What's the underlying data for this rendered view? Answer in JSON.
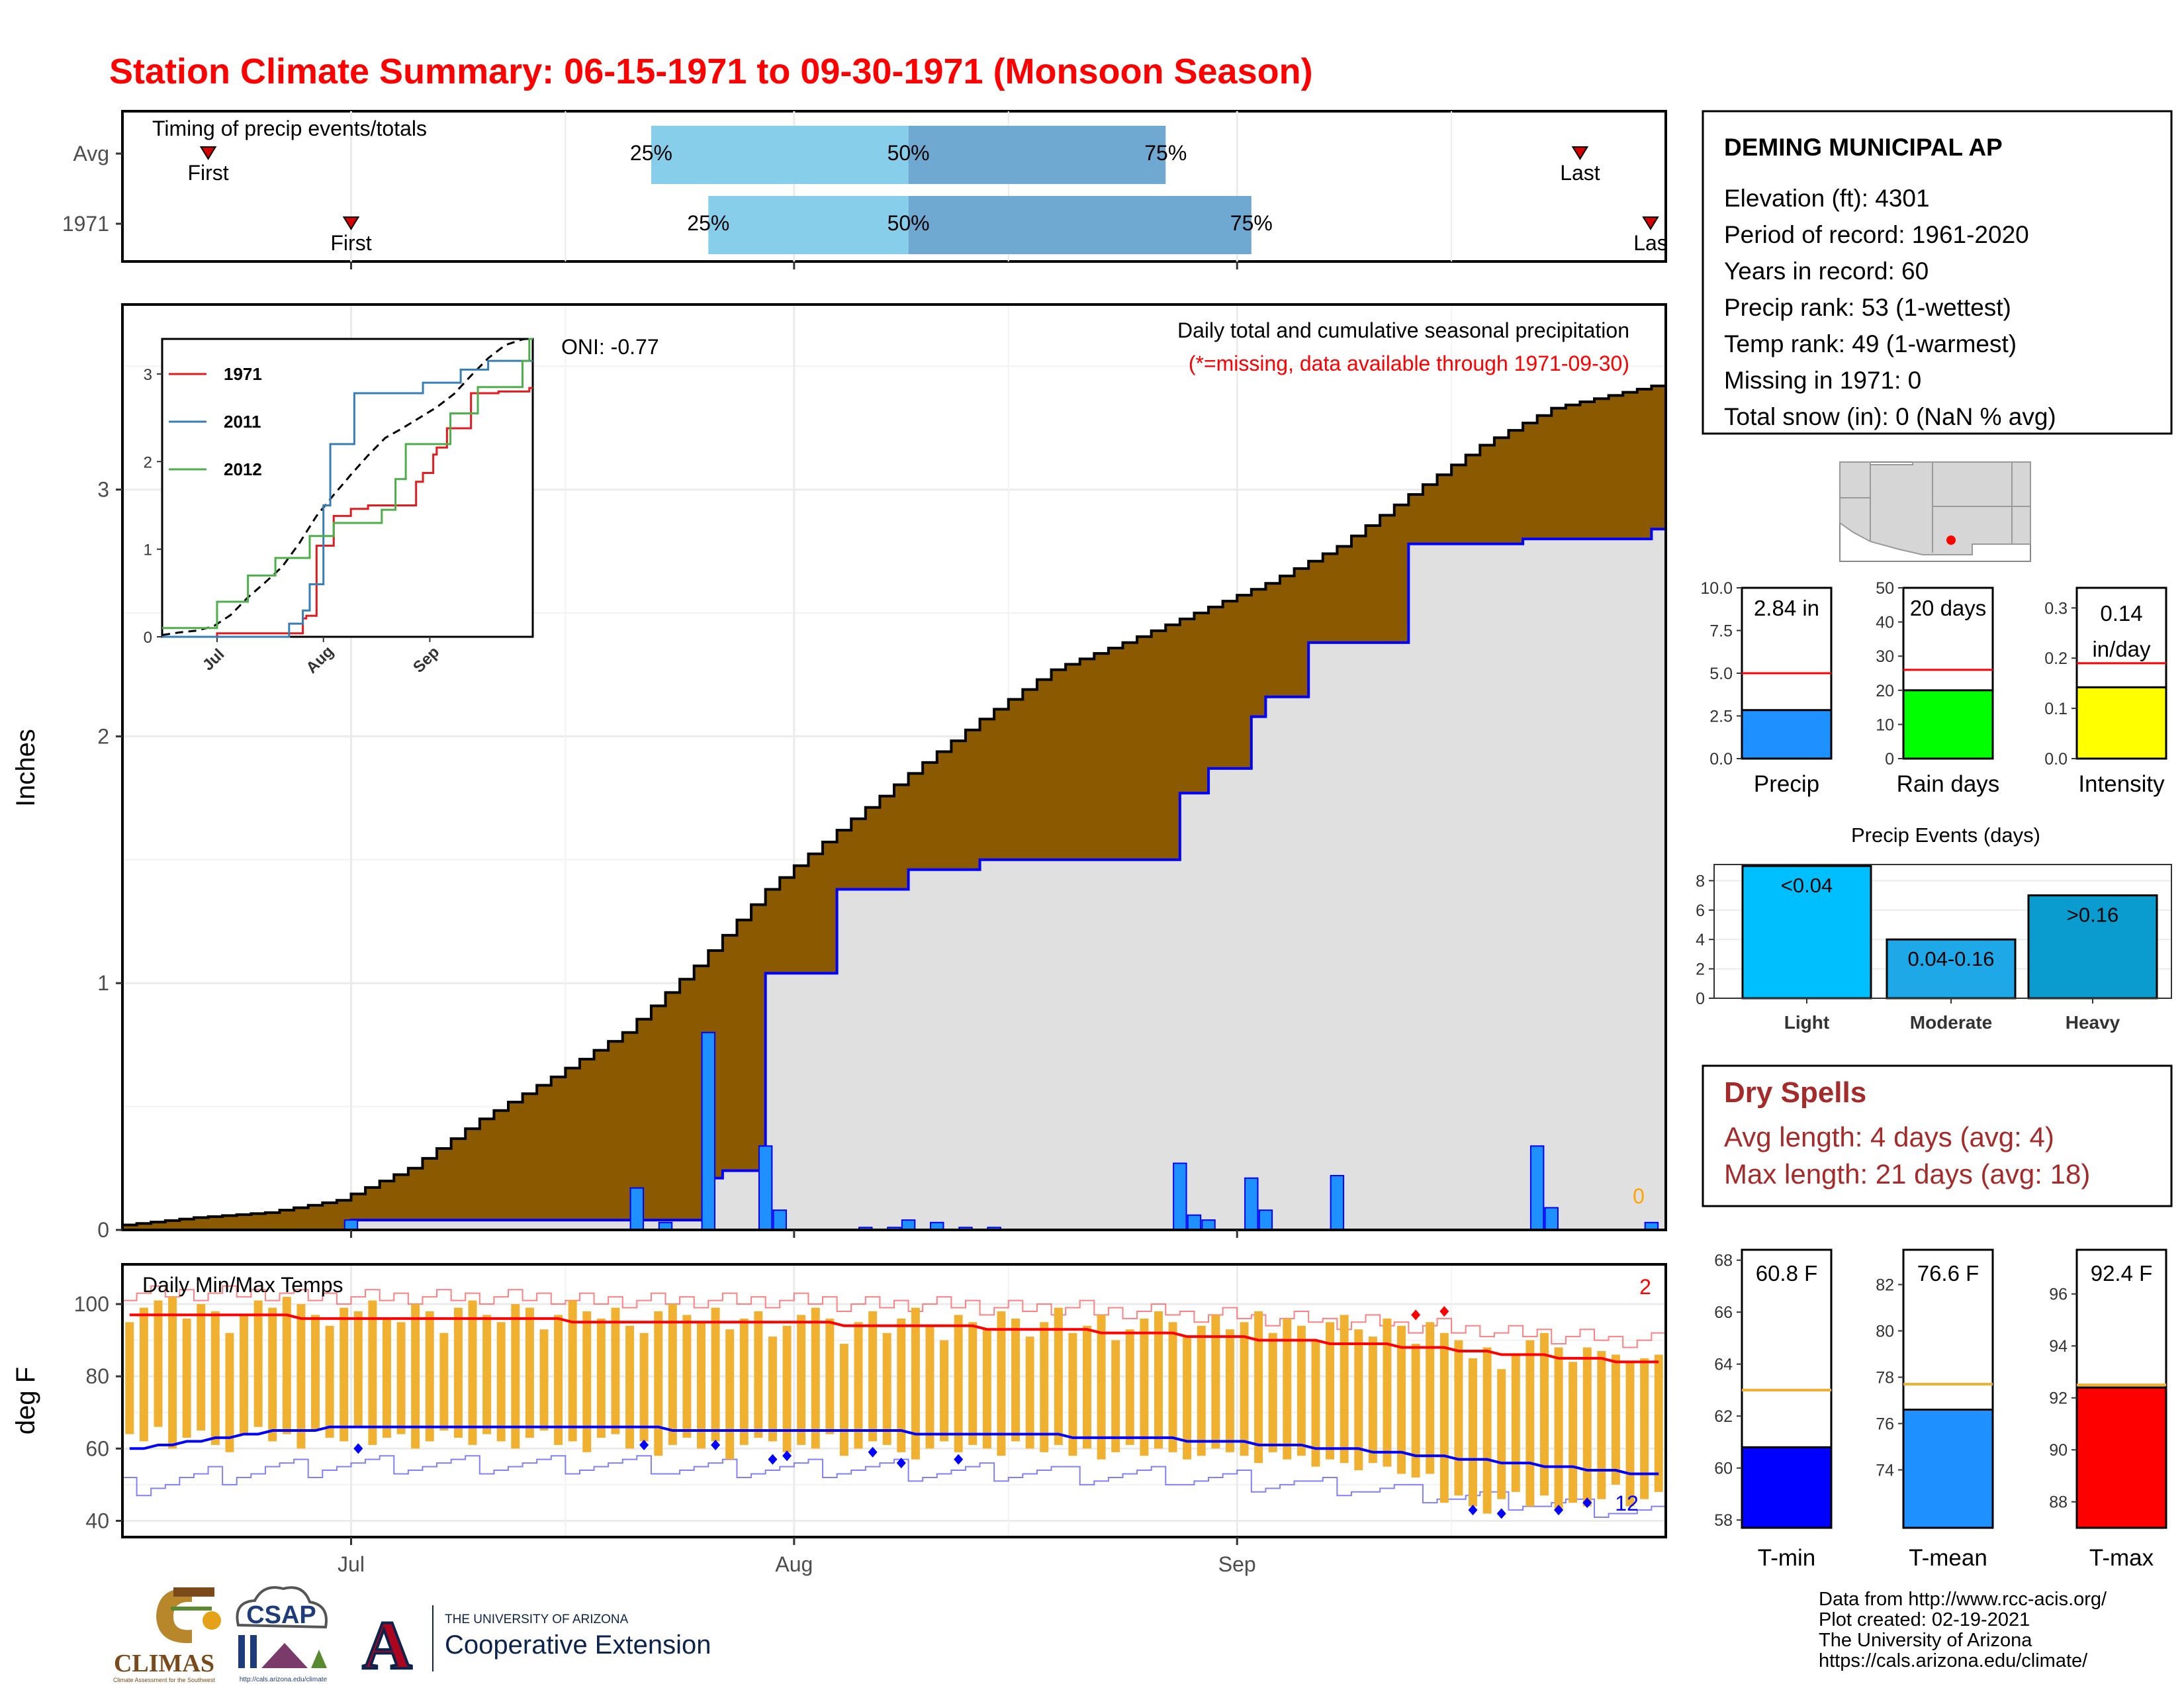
{
  "page": {
    "title": "Station Climate Summary: 06-15-1971 to 09-30-1971 (Monsoon Season)",
    "colors": {
      "title": "#ff0000",
      "brown": "#8b5a00",
      "grey": "#e0e0e0",
      "bar_blue": "#1e90ff",
      "light_blue": "#87ceeb",
      "mid_blue": "#6fa8d0",
      "orange": "#f0b030",
      "dry_red": "#a52a2a"
    }
  },
  "timing": {
    "title": "Timing of precip events/totals",
    "rows": [
      {
        "label": "Avg",
        "first_date": "1971-06-21",
        "p25_date": "1971-07-22",
        "p50_date": "1971-08-09",
        "p75_date": "1971-08-27",
        "last_date": "1971-09-25",
        "first_text": "First",
        "last_text": "Last"
      },
      {
        "label": "1971",
        "first_date": "1971-07-01",
        "p25_date": "1971-07-26",
        "p50_date": "1971-08-09",
        "p75_date": "1971-09-02",
        "last_date": "1971-09-30",
        "first_text": "First",
        "last_text": "Las"
      }
    ],
    "pct_labels": [
      "25%",
      "50%",
      "75%"
    ]
  },
  "precip_chart": {
    "ylabel": "Inches",
    "ylim": [
      0,
      3.75
    ],
    "yticks": [
      "0",
      "1",
      "2",
      "3"
    ],
    "oni_text": "ONI: -0.77",
    "subtitle": "Daily total and cumulative seasonal precipitation",
    "missing_note": "(*=missing, data available through 1971-09-30)",
    "missing_count": "0",
    "x_months": [
      "Jul",
      "Aug",
      "Sep"
    ]
  },
  "inset": {
    "yticks": [
      "0",
      "1",
      "2",
      "3"
    ],
    "x_months": [
      "Jul",
      "Aug",
      "Sep"
    ],
    "legend": [
      {
        "name": "1971",
        "color": "#e41a1c"
      },
      {
        "name": "2011",
        "color": "#377eb8"
      },
      {
        "name": "2012",
        "color": "#4daf4a"
      }
    ]
  },
  "temp_chart": {
    "ylabel": "deg F",
    "title": "Daily Min/Max Temps",
    "yticks": [
      "40",
      "60",
      "80",
      "100"
    ],
    "record_high_count": "2",
    "record_low_count": "12",
    "x_months": [
      "Jul",
      "Aug",
      "Sep"
    ]
  },
  "station": {
    "name": "DEMING MUNICIPAL AP",
    "lines": [
      "Elevation (ft): 4301",
      "Period of record: 1961-2020",
      "Years in record: 60",
      "Precip rank: 53 (1-wettest)",
      "Temp rank: 49 (1-warmest)",
      "Missing in 1971: 0",
      "Total snow (in): 0 (NaN % avg)"
    ]
  },
  "mini_bars": [
    {
      "label": "Precip",
      "value_text": "2.84 in",
      "value": 2.84,
      "avg": 5.0,
      "ymax": 10,
      "color": "#1e90ff",
      "ticks": [
        "0.0",
        "2.5",
        "5.0",
        "7.5",
        "10.0"
      ]
    },
    {
      "label": "Rain days",
      "value_text": "20 days",
      "value": 20,
      "avg": 26,
      "ymax": 50,
      "color": "#00ff00",
      "ticks": [
        "0",
        "10",
        "20",
        "30",
        "40",
        "50"
      ]
    },
    {
      "label": "Intensity",
      "value_text": "0.14",
      "value_text2": "in/day",
      "value": 0.142,
      "avg": 0.19,
      "ymax": 0.34,
      "color": "#ffff00",
      "ticks": [
        "0.0",
        "0.1",
        "0.2",
        "0.3"
      ]
    }
  ],
  "events": {
    "title": "Precip Events (days)",
    "ticks": [
      "0",
      "2",
      "4",
      "6",
      "8"
    ],
    "bars": [
      {
        "category": "Light",
        "label": "<0.04",
        "value": 9,
        "color": "#00bfff"
      },
      {
        "category": "Moderate",
        "label": "0.04-0.16",
        "value": 4,
        "color": "#1ea8e8"
      },
      {
        "category": "Heavy",
        "label": ">0.16",
        "value": 7,
        "color": "#0a9ccf"
      }
    ]
  },
  "dry_spells": {
    "title": "Dry Spells",
    "avg_line": "Avg length: 4 days (avg: 4)",
    "max_line": "Max length: 21 days (avg: 18)"
  },
  "temp_bars": [
    {
      "label": "T-min",
      "value_text": "60.8 F",
      "value": 60.8,
      "avg": 63.0,
      "ymin": 57.7,
      "ymax": 68.4,
      "color": "#0000ff",
      "ticks": [
        "58",
        "60",
        "62",
        "64",
        "66",
        "68"
      ]
    },
    {
      "label": "T-mean",
      "value_text": "76.6 F",
      "value": 76.6,
      "avg": 77.7,
      "ymin": 71.5,
      "ymax": 83.5,
      "color": "#1e90ff",
      "ticks": [
        "74",
        "76",
        "78",
        "80",
        "82"
      ]
    },
    {
      "label": "T-max",
      "value_text": "92.4 F",
      "value": 92.4,
      "avg": 92.5,
      "ymin": 87.0,
      "ymax": 97.7,
      "color": "#ff0000",
      "ticks": [
        "88",
        "90",
        "92",
        "94",
        "96"
      ]
    }
  ],
  "credits": {
    "lines": [
      "Data from http://www.rcc-acis.org/",
      "Plot created: 02-19-2021",
      "The University of Arizona",
      "https://cals.arizona.edu/climate/"
    ]
  },
  "logos": {
    "climas": "CLIMAS",
    "climas_sub": "Climate Assessment for the Southwest",
    "csap": "CSAP",
    "csap_url": "http://cals.arizona.edu/climate",
    "ua_letter": "A",
    "ua_line1": "THE UNIVERSITY OF ARIZONA",
    "ua_line2": "Cooperative Extension"
  },
  "chart_data": {
    "type": "area",
    "title": "Daily total and cumulative seasonal precipitation",
    "ylabel": "Inches",
    "ylim": [
      0,
      3.75
    ],
    "x_start": "1971-06-15",
    "x_end": "1971-09-30",
    "avg_cumulative": {
      "x": [
        "1971-06-15",
        "1971-06-20",
        "1971-06-25",
        "1971-06-30",
        "1971-07-05",
        "1971-07-10",
        "1971-07-15",
        "1971-07-20",
        "1971-07-25",
        "1971-07-30",
        "1971-08-04",
        "1971-08-09",
        "1971-08-14",
        "1971-08-19",
        "1971-08-24",
        "1971-08-29",
        "1971-09-03",
        "1971-09-08",
        "1971-09-13",
        "1971-09-18",
        "1971-09-23",
        "1971-09-30"
      ],
      "values": [
        0.02,
        0.05,
        0.07,
        0.12,
        0.25,
        0.45,
        0.62,
        0.8,
        1.07,
        1.38,
        1.62,
        1.85,
        2.07,
        2.27,
        2.38,
        2.5,
        2.62,
        2.77,
        2.98,
        3.18,
        3.33,
        3.42
      ]
    },
    "cumulative_1971": {
      "x": [
        "1971-06-15",
        "1971-06-30",
        "1971-07-01",
        "1971-07-22",
        "1971-07-26",
        "1971-07-27",
        "1971-07-30",
        "1971-08-04",
        "1971-08-09",
        "1971-08-14",
        "1971-08-27",
        "1971-08-28",
        "1971-08-30",
        "1971-09-02",
        "1971-09-03",
        "1971-09-06",
        "1971-09-13",
        "1971-09-20",
        "1971-09-21",
        "1971-09-30"
      ],
      "values": [
        0.0,
        0.0,
        0.04,
        0.04,
        0.21,
        0.24,
        1.04,
        1.38,
        1.46,
        1.5,
        1.5,
        1.77,
        1.87,
        2.08,
        2.16,
        2.38,
        2.78,
        2.78,
        2.8,
        2.84
      ]
    },
    "daily_1971": {
      "x": [
        "1971-07-01",
        "1971-07-21",
        "1971-07-23",
        "1971-07-26",
        "1971-07-30",
        "1971-07-31",
        "1971-08-06",
        "1971-08-08",
        "1971-08-09",
        "1971-08-11",
        "1971-08-13",
        "1971-08-15",
        "1971-08-28",
        "1971-08-29",
        "1971-08-30",
        "1971-09-02",
        "1971-09-03",
        "1971-09-08",
        "1971-09-22",
        "1971-09-23",
        "1971-09-30"
      ],
      "values": [
        0.04,
        0.17,
        0.03,
        0.8,
        0.34,
        0.08,
        0.01,
        0.01,
        0.04,
        0.03,
        0.01,
        0.01,
        0.27,
        0.06,
        0.04,
        0.21,
        0.08,
        0.22,
        0.34,
        0.09,
        0.03
      ]
    },
    "temps_1971": {
      "x_start": "1971-06-15",
      "tmax": [
        95,
        99,
        101,
        102,
        96,
        100,
        98,
        92,
        97,
        101,
        99,
        102,
        100,
        97,
        94,
        99,
        98,
        101,
        96,
        95,
        100,
        98,
        92,
        99,
        101,
        97,
        95,
        100,
        99,
        93,
        97,
        101,
        98,
        96,
        99,
        94,
        92,
        98,
        100,
        97,
        95,
        99,
        93,
        96,
        98,
        91,
        94,
        97,
        99,
        96,
        89,
        95,
        98,
        92,
        96,
        99,
        94,
        90,
        97,
        95,
        93,
        98,
        96,
        91,
        95,
        99,
        92,
        94,
        97,
        90,
        93,
        96,
        98,
        95,
        91,
        94,
        97,
        93,
        95,
        98,
        92,
        96,
        94,
        90,
        95,
        97,
        93,
        91,
        96,
        94,
        89,
        95,
        92,
        90,
        85,
        88,
        82,
        86,
        90,
        92,
        88,
        84,
        88,
        87,
        86,
        84,
        85,
        86
      ],
      "tmin": [
        64,
        62,
        66,
        60,
        63,
        65,
        61,
        59,
        64,
        66,
        62,
        64,
        60,
        65,
        63,
        62,
        66,
        61,
        63,
        64,
        60,
        62,
        65,
        63,
        61,
        64,
        62,
        60,
        63,
        65,
        61,
        62,
        59,
        63,
        64,
        60,
        62,
        58,
        61,
        63,
        60,
        62,
        57,
        61,
        63,
        62,
        59,
        61,
        60,
        64,
        58,
        60,
        62,
        61,
        59,
        57,
        60,
        62,
        59,
        61,
        60,
        58,
        62,
        60,
        59,
        61,
        58,
        60,
        57,
        59,
        61,
        58,
        60,
        59,
        57,
        58,
        60,
        59,
        58,
        56,
        59,
        57,
        58,
        55,
        57,
        56,
        54,
        56,
        55,
        53,
        52,
        53,
        45,
        47,
        44,
        42,
        46,
        48,
        44,
        47,
        43,
        45,
        44,
        46,
        50,
        44,
        46,
        48
      ],
      "avg_max": [
        97,
        97,
        97,
        97,
        97,
        97,
        97,
        97,
        97,
        97,
        97,
        97,
        96,
        96,
        96,
        96,
        96,
        96,
        96,
        96,
        96,
        96,
        96,
        96,
        96,
        96,
        96,
        96,
        96,
        96,
        96,
        95,
        95,
        95,
        95,
        95,
        95,
        95,
        95,
        95,
        95,
        95,
        95,
        95,
        95,
        95,
        95,
        95,
        95,
        95,
        94,
        94,
        94,
        94,
        94,
        94,
        94,
        94,
        94,
        94,
        93,
        93,
        93,
        93,
        93,
        93,
        93,
        93,
        92,
        92,
        92,
        92,
        92,
        92,
        91,
        91,
        91,
        91,
        91,
        90,
        90,
        90,
        90,
        90,
        89,
        89,
        89,
        89,
        89,
        88,
        88,
        88,
        88,
        87,
        87,
        87,
        86,
        86,
        86,
        86,
        85,
        85,
        85,
        85,
        84,
        84,
        84,
        84
      ],
      "avg_min": [
        60,
        60,
        61,
        61,
        62,
        62,
        63,
        63,
        64,
        64,
        65,
        65,
        65,
        65,
        66,
        66,
        66,
        66,
        66,
        66,
        66,
        66,
        66,
        66,
        66,
        66,
        66,
        66,
        66,
        66,
        66,
        66,
        66,
        66,
        66,
        66,
        66,
        66,
        65,
        65,
        65,
        65,
        65,
        65,
        65,
        65,
        65,
        65,
        65,
        65,
        65,
        65,
        65,
        65,
        65,
        64,
        64,
        64,
        64,
        64,
        64,
        64,
        64,
        64,
        64,
        64,
        63,
        63,
        63,
        63,
        63,
        63,
        63,
        63,
        62,
        62,
        62,
        62,
        62,
        61,
        61,
        61,
        61,
        60,
        60,
        60,
        60,
        59,
        59,
        59,
        58,
        58,
        58,
        57,
        57,
        57,
        56,
        56,
        56,
        55,
        55,
        55,
        54,
        54,
        54,
        53,
        53,
        53
      ]
    }
  }
}
